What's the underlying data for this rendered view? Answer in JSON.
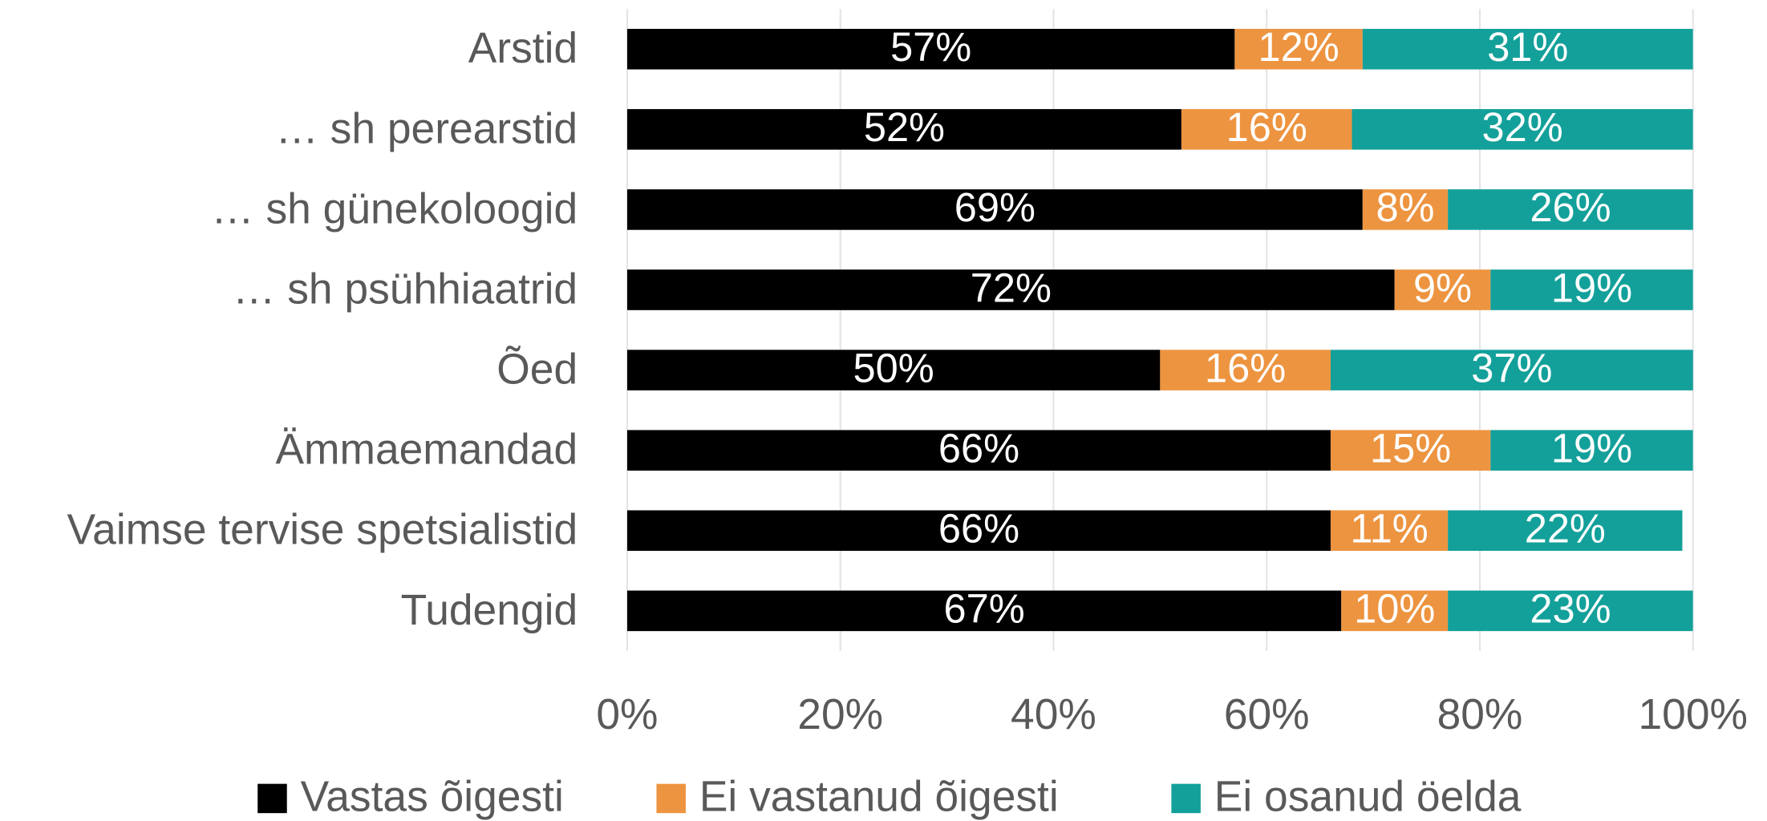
{
  "chart_data": {
    "type": "stacked_barh",
    "categories": [
      "Arstid",
      "… sh perearstid",
      "… sh günekoloogid",
      "… sh psühhiaatrid",
      "Õed",
      "Ämmaemandad",
      "Vaimse tervise spetsialistid",
      "Tudengid"
    ],
    "series": [
      {
        "name": "Vastas õigesti",
        "color": "#000000",
        "values": [
          57,
          52,
          69,
          72,
          50,
          66,
          66,
          67
        ],
        "value_labels": [
          "57%",
          "52%",
          "69%",
          "72%",
          "50%",
          "66%",
          "66%",
          "67%"
        ]
      },
      {
        "name": "Ei vastanud õigesti",
        "color": "#ED9440",
        "values": [
          12,
          16,
          8,
          9,
          16,
          15,
          11,
          10
        ],
        "value_labels": [
          "12%",
          "16%",
          "8%",
          "9%",
          "16%",
          "15%",
          "11%",
          "10%"
        ]
      },
      {
        "name": "Ei osanud öelda",
        "color": "#13A09A",
        "values": [
          31,
          32,
          26,
          19,
          37,
          19,
          22,
          23
        ],
        "value_labels": [
          "31%",
          "32%",
          "26%",
          "19%",
          "37%",
          "19%",
          "22%",
          "23%"
        ]
      }
    ],
    "xlim": [
      0,
      100
    ],
    "xticks": [
      {
        "value": 0,
        "label": "0%"
      },
      {
        "value": 20,
        "label": "20%"
      },
      {
        "value": 40,
        "label": "40%"
      },
      {
        "value": 60,
        "label": "60%"
      },
      {
        "value": 80,
        "label": "80%"
      },
      {
        "value": 100,
        "label": "100%"
      }
    ],
    "grid": true,
    "legend": "bottom"
  }
}
